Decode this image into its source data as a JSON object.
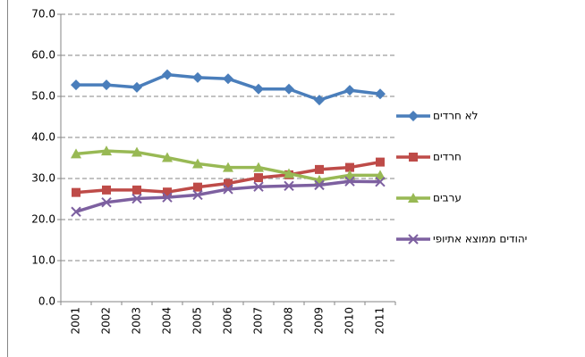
{
  "chart_data": {
    "type": "line",
    "categories": [
      "2001",
      "2002",
      "2003",
      "2004",
      "2005",
      "2006",
      "2007",
      "2008",
      "2009",
      "2010",
      "2011"
    ],
    "series": [
      {
        "name": "לא חרדים",
        "color": "#4a7ebb",
        "marker": "diamond",
        "values": [
          52.8,
          52.8,
          52.2,
          55.3,
          54.6,
          54.3,
          51.8,
          51.8,
          49.1,
          51.5,
          50.6
        ]
      },
      {
        "name": "חרדים",
        "color": "#be4b48",
        "marker": "square",
        "values": [
          26.6,
          27.2,
          27.2,
          26.7,
          27.9,
          28.8,
          30.2,
          30.9,
          32.2,
          32.7,
          34.0
        ]
      },
      {
        "name": "ערבים",
        "color": "#98b954",
        "marker": "triangle",
        "values": [
          36.0,
          36.7,
          36.4,
          35.1,
          33.6,
          32.7,
          32.7,
          31.2,
          29.6,
          30.8,
          30.8
        ]
      },
      {
        "name": "יהודים ממוצא אתיופי",
        "color": "#7d60a0",
        "marker": "x",
        "values": [
          21.9,
          24.2,
          25.1,
          25.4,
          26.0,
          27.4,
          28.0,
          28.2,
          28.4,
          29.3,
          29.2
        ]
      }
    ],
    "ylim": [
      0,
      70
    ],
    "yticks": [
      {
        "value": 0,
        "label": "0.0"
      },
      {
        "value": 10,
        "label": "10.0"
      },
      {
        "value": 20,
        "label": "20.0"
      },
      {
        "value": 30,
        "label": "30.0"
      },
      {
        "value": 40,
        "label": "40.0"
      },
      {
        "value": 50,
        "label": "50.0"
      },
      {
        "value": 60,
        "label": "60.0"
      },
      {
        "value": 70,
        "label": "70.0"
      }
    ],
    "grid": true,
    "legend": "right"
  }
}
